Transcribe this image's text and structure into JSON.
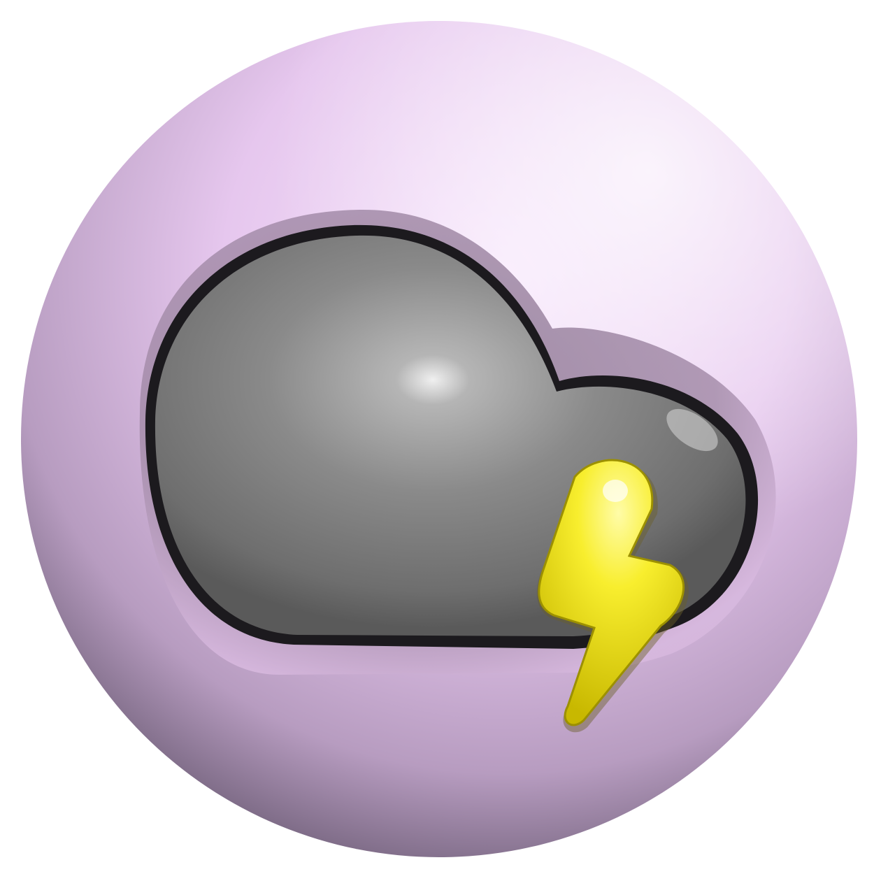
{
  "icon": {
    "name": "thunderstorm-cloud-icon",
    "colors": {
      "background": "#ffffff",
      "disc": "#e7c9ef",
      "disc_shadow": "#6f5f78",
      "cloud": "#8c8c8c",
      "cloud_highlight": "#ececec",
      "cloud_outline": "#1a1a1a",
      "bolt": "#f7ec2a",
      "bolt_shadow": "#b7a900"
    }
  }
}
